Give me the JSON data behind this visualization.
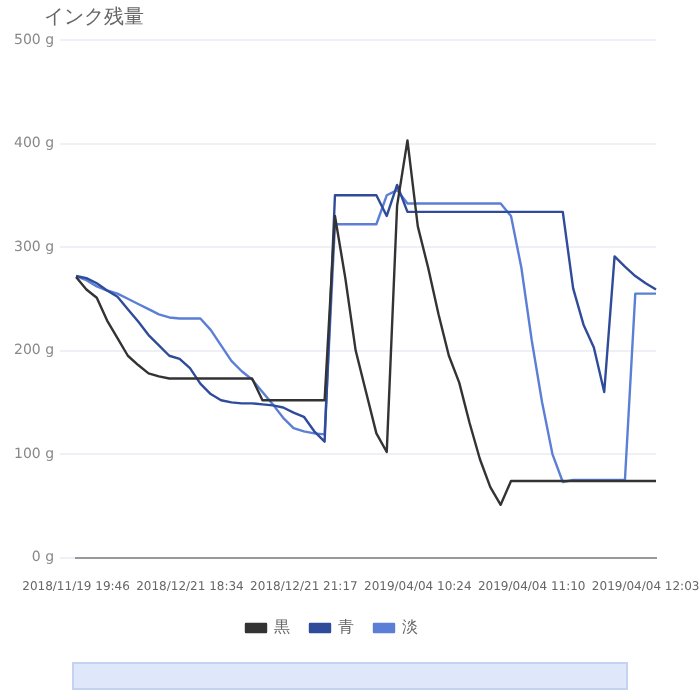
{
  "chart_data": {
    "type": "line",
    "ylabel": "インク残量",
    "categories": [
      "2018/11/19 19:46",
      null,
      null,
      null,
      null,
      null,
      null,
      null,
      null,
      null,
      null,
      "2018/12/21 18:34",
      null,
      null,
      null,
      null,
      null,
      null,
      null,
      null,
      null,
      null,
      "2018/12/21 21:17",
      null,
      null,
      null,
      null,
      null,
      null,
      null,
      null,
      null,
      null,
      "2019/04/04 10:24",
      null,
      null,
      null,
      null,
      null,
      null,
      null,
      null,
      null,
      null,
      "2019/04/04 11:10",
      null,
      null,
      null,
      null,
      null,
      null,
      null,
      null,
      null,
      null,
      "2019/04/04 12:03",
      null
    ],
    "series": [
      {
        "name": "黒",
        "color": "#333333",
        "values": [
          271,
          259,
          251,
          229,
          212,
          195,
          186,
          178,
          175,
          173,
          173,
          173,
          173,
          173,
          173,
          173,
          173,
          173,
          152,
          152,
          152,
          152,
          152,
          152,
          152,
          330,
          270,
          200,
          160,
          120,
          102,
          340,
          403,
          320,
          280,
          235,
          195,
          169,
          130,
          95,
          68,
          51,
          74,
          74,
          74,
          74,
          74,
          74,
          74,
          74,
          74,
          74,
          74,
          74,
          74,
          74,
          74
        ]
      },
      {
        "name": "青",
        "color": "#2f4b9a",
        "values": [
          272,
          270,
          265,
          258,
          252,
          240,
          228,
          215,
          205,
          195,
          192,
          183,
          168,
          158,
          152,
          150,
          149,
          149,
          148,
          147,
          145,
          140,
          136,
          122,
          112,
          350,
          350,
          350,
          350,
          350,
          330,
          360,
          334,
          334,
          334,
          334,
          334,
          334,
          334,
          334,
          334,
          334,
          334,
          334,
          334,
          334,
          334,
          334,
          260,
          225,
          203,
          160,
          291,
          281,
          272,
          265,
          259
        ]
      },
      {
        "name": "淡",
        "color": "#5b7fd6",
        "values": [
          272,
          268,
          262,
          258,
          255,
          250,
          245,
          240,
          235,
          232,
          231,
          231,
          231,
          220,
          205,
          190,
          180,
          172,
          160,
          148,
          135,
          125,
          122,
          120,
          119,
          322,
          322,
          322,
          322,
          322,
          350,
          355,
          342,
          342,
          342,
          342,
          342,
          342,
          342,
          342,
          342,
          342,
          330,
          280,
          210,
          150,
          100,
          73,
          75,
          75,
          75,
          75,
          75,
          75,
          255,
          255,
          255
        ]
      }
    ],
    "ylim": [
      0,
      500
    ],
    "yticks": [
      {
        "value": 0,
        "label": "0 g"
      },
      {
        "value": 100,
        "label": "100 g"
      },
      {
        "value": 200,
        "label": "200 g"
      },
      {
        "value": 300,
        "label": "300 g"
      },
      {
        "value": 400,
        "label": "400 g"
      },
      {
        "value": 500,
        "label": "500 g"
      }
    ],
    "grid": "y",
    "legend": "bottom"
  }
}
